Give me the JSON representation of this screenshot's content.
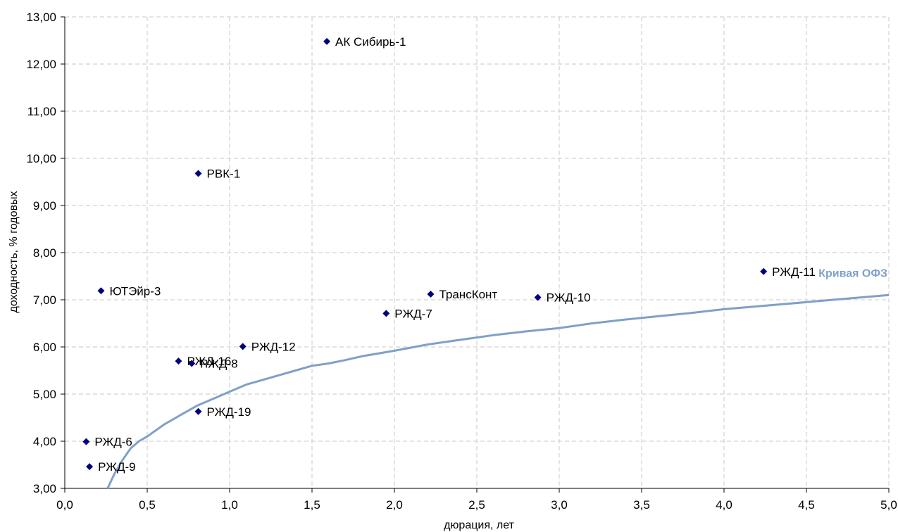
{
  "chart_data": {
    "type": "scatter",
    "xlabel": "дюрация, лет",
    "ylabel": "доходность, % годовых",
    "xlim": [
      0,
      5
    ],
    "ylim": [
      3,
      13
    ],
    "grid": true,
    "x_ticks": [
      "0,0",
      "0,5",
      "1,0",
      "1,5",
      "2,0",
      "2,5",
      "3,0",
      "3,5",
      "4,0",
      "4,5",
      "5,0"
    ],
    "y_ticks": [
      "3,00",
      "4,00",
      "5,00",
      "6,00",
      "7,00",
      "8,00",
      "9,00",
      "10,00",
      "11,00",
      "12,00",
      "13,00"
    ],
    "point_color": "#000080",
    "points": [
      {
        "label": "АК Сибирь-1",
        "x": 1.59,
        "y": 12.48
      },
      {
        "label": "РВК-1",
        "x": 0.81,
        "y": 9.68
      },
      {
        "label": "ЮТЭйр-3",
        "x": 0.22,
        "y": 7.19
      },
      {
        "label": "ТрансКонт",
        "x": 2.22,
        "y": 7.12
      },
      {
        "label": "РЖД-10",
        "x": 2.87,
        "y": 7.05
      },
      {
        "label": "РЖД-11",
        "x": 4.24,
        "y": 7.6
      },
      {
        "label": "РЖД-7",
        "x": 1.95,
        "y": 6.71
      },
      {
        "label": "РЖД-12",
        "x": 1.08,
        "y": 6.01
      },
      {
        "label": "РЖД-16",
        "x": 0.69,
        "y": 5.7
      },
      {
        "label": "РЖД-8",
        "x": 0.77,
        "y": 5.65
      },
      {
        "label": "РЖД-19",
        "x": 0.81,
        "y": 4.63
      },
      {
        "label": "РЖД-6",
        "x": 0.13,
        "y": 3.99
      },
      {
        "label": "РЖД-9",
        "x": 0.15,
        "y": 3.46
      }
    ],
    "curve": {
      "name": "Кривая ОФЗ",
      "color": "#7fa0c8",
      "x": [
        0.26,
        0.3,
        0.35,
        0.4,
        0.45,
        0.5,
        0.6,
        0.7,
        0.8,
        0.9,
        1.0,
        1.1,
        1.2,
        1.3,
        1.4,
        1.5,
        1.6,
        1.7,
        1.8,
        1.9,
        2.0,
        2.2,
        2.4,
        2.6,
        2.8,
        3.0,
        3.2,
        3.4,
        3.6,
        3.8,
        4.0,
        4.2,
        4.4,
        4.6,
        4.8,
        5.0
      ],
      "y": [
        3.0,
        3.3,
        3.6,
        3.85,
        4.0,
        4.1,
        4.35,
        4.55,
        4.75,
        4.9,
        5.05,
        5.2,
        5.3,
        5.4,
        5.5,
        5.6,
        5.65,
        5.72,
        5.8,
        5.86,
        5.92,
        6.05,
        6.15,
        6.25,
        6.33,
        6.4,
        6.5,
        6.58,
        6.65,
        6.72,
        6.8,
        6.86,
        6.92,
        6.98,
        7.04,
        7.1
      ]
    }
  }
}
